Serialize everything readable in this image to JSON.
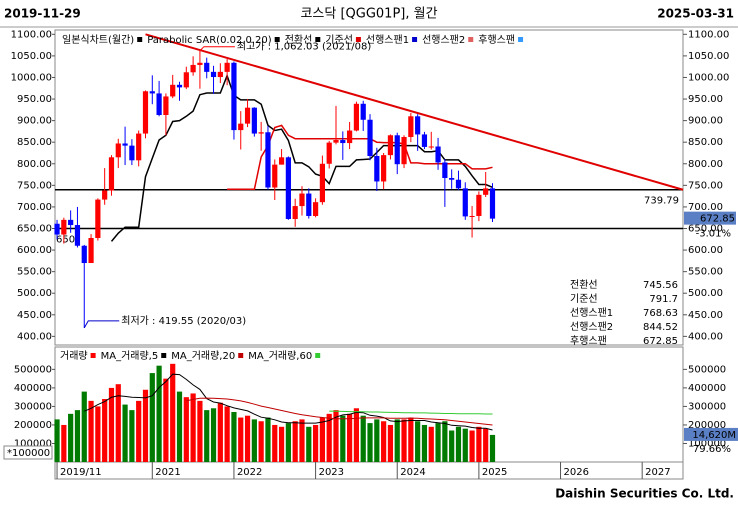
{
  "header": {
    "start_date": "2019-11-29",
    "title": "코스닥 [QGG01P], 월간",
    "end_date": "2025-03-31"
  },
  "footer": "Daishin Securities Co. Ltd.",
  "chart_data": [
    {
      "type": "candlestick",
      "up_color": "#ff0000",
      "down_color": "#0000ff",
      "ylim": [
        380,
        1110
      ],
      "xlim": [
        -0.3,
        92
      ],
      "yticks": [
        {
          "value": 1100,
          "label": "1100.00"
        },
        {
          "value": 1050,
          "label": "1050.00"
        },
        {
          "value": 1000,
          "label": "1000.00"
        },
        {
          "value": 950,
          "label": "950.00"
        },
        {
          "value": 900,
          "label": "900.00"
        },
        {
          "value": 850,
          "label": "850.00"
        },
        {
          "value": 800,
          "label": "800.00"
        },
        {
          "value": 750,
          "label": "750.00"
        },
        {
          "value": 700,
          "label": "700.00"
        },
        {
          "value": 650,
          "label": "650.00"
        },
        {
          "value": 600,
          "label": "600.00"
        },
        {
          "value": 550,
          "label": "550.00"
        },
        {
          "value": 500,
          "label": "500.00"
        },
        {
          "value": 450,
          "label": "450.00"
        },
        {
          "value": 400,
          "label": "400.00"
        }
      ],
      "open": [
        661,
        636,
        670,
        658,
        610,
        570,
        628,
        717,
        738,
        815,
        847,
        842,
        808,
        870,
        968,
        963,
        913,
        956,
        983,
        977,
        1012,
        1029,
        1034,
        1013,
        1001,
        1013,
        1034,
        878,
        893,
        930,
        870,
        873,
        745,
        798,
        815,
        672,
        702,
        731,
        679,
        711,
        800,
        849,
        855,
        848,
        877,
        939,
        902,
        818,
        759,
        820,
        866,
        799,
        862,
        910,
        868,
        839,
        840,
        803,
        767,
        763,
        743,
        678,
        679,
        728,
        743
      ],
      "high": [
        670,
        675,
        692,
        700,
        612,
        637,
        720,
        790,
        820,
        858,
        886,
        857,
        877,
        970,
        1005,
        992,
        963,
        1006,
        990,
        1025,
        1049,
        1062.03,
        1046,
        1027,
        1033,
        1043,
        1037,
        922,
        950,
        931,
        897,
        888,
        810,
        834,
        817,
        719,
        748,
        743,
        720,
        819,
        853,
        934,
        875,
        897,
        944,
        946,
        915,
        837,
        825,
        868,
        872,
        866,
        918,
        915,
        874,
        874,
        860,
        811,
        787,
        784,
        757,
        702,
        736,
        781,
        755
      ],
      "low": [
        625,
        615,
        640,
        606,
        419.55,
        570,
        622,
        705,
        726,
        790,
        797,
        797,
        794,
        859,
        938,
        910,
        866,
        952,
        946,
        973,
        1004,
        974,
        998,
        962,
        987,
        982,
        856,
        833,
        885,
        863,
        830,
        740,
        716,
        798,
        670,
        654,
        680,
        673,
        676,
        705,
        789,
        845,
        809,
        834,
        875,
        876,
        808,
        737,
        741,
        810,
        776,
        790,
        850,
        830,
        834,
        833,
        786,
        700,
        742,
        739,
        670,
        629,
        667,
        723,
        665
      ],
      "close": [
        636,
        670,
        658,
        610,
        570,
        628,
        717,
        738,
        815,
        847,
        842,
        808,
        870,
        968,
        963,
        913,
        956,
        983,
        977,
        1012,
        1029,
        1034,
        1013,
        1001,
        1013,
        1034,
        878,
        893,
        930,
        870,
        873,
        745,
        798,
        815,
        672,
        702,
        731,
        679,
        711,
        800,
        849,
        855,
        848,
        877,
        939,
        902,
        818,
        759,
        820,
        866,
        799,
        862,
        910,
        868,
        839,
        840,
        803,
        767,
        763,
        743,
        678,
        679,
        728,
        743,
        672.85
      ],
      "indicators": [
        {
          "name": "일본식차트(월간)",
          "color": "#000000"
        },
        {
          "name": "Parabolic SAR(0.02,0.20)",
          "color": "#000000"
        },
        {
          "name": "전환선",
          "color": "#000000",
          "values": [
            null,
            null,
            null,
            null,
            null,
            null,
            null,
            null,
            620,
            639,
            653,
            653,
            653,
            770,
            813,
            855,
            866,
            898,
            900,
            910,
            922,
            960,
            964,
            964,
            964,
            1004,
            959,
            948,
            948,
            948,
            938,
            889,
            877,
            880,
            854,
            802,
            802,
            793,
            776,
            771,
            754,
            794,
            794,
            794,
            809,
            810,
            811,
            826,
            842,
            842,
            842,
            842,
            842,
            842,
            828,
            828,
            830,
            809,
            809,
            809,
            794,
            772,
            752,
            752,
            745.56
          ]
        },
        {
          "name": "기준선",
          "color": "#e00000",
          "values": [
            null,
            null,
            null,
            null,
            null,
            null,
            null,
            null,
            null,
            null,
            null,
            null,
            null,
            null,
            null,
            null,
            null,
            null,
            null,
            null,
            null,
            null,
            null,
            null,
            null,
            741,
            741,
            741,
            741,
            741,
            816,
            842,
            884,
            889,
            866,
            858,
            858,
            858,
            858,
            858,
            858,
            858,
            858,
            858,
            858,
            858,
            858,
            850,
            849,
            849,
            849,
            846,
            802,
            802,
            800,
            800,
            800,
            800,
            800,
            800,
            800,
            788,
            788,
            788,
            791.7
          ]
        },
        {
          "name": "선행스팬1",
          "color": "#0000cc"
        },
        {
          "name": "선행스팬2",
          "color": "#e06060"
        },
        {
          "name": "후행스팬",
          "color": "#3399ff"
        }
      ],
      "trendline": {
        "start_index": 13,
        "start_value": 1100,
        "end_value": 739.79,
        "color": "#e00000"
      },
      "hlines": [
        {
          "value": 739.79,
          "label": "739.79",
          "side": "right"
        },
        {
          "value": 650,
          "label": "650",
          "side": "left"
        }
      ],
      "annotations": [
        {
          "index": 21,
          "value": 1062.03,
          "label": "최고가 : 1,062.03 (2021/08)"
        },
        {
          "index": 4,
          "value": 419.55,
          "label": "최저가 : 419.55 (2020/03)"
        }
      ],
      "last_price": {
        "value": 672.85,
        "label": "672.85",
        "change": "-3.01%"
      },
      "info": [
        {
          "label": "전환선",
          "value": 745.56
        },
        {
          "label": "기준선",
          "value": 791.7
        },
        {
          "label": "선행스팬1",
          "value": 768.63
        },
        {
          "label": "선행스팬2",
          "value": 844.52
        },
        {
          "label": "후행스팬",
          "value": 672.85
        }
      ]
    },
    {
      "type": "bar",
      "ylim": [
        0,
        610000
      ],
      "xlim": [
        -0.3,
        92
      ],
      "yticks": [
        100000,
        200000,
        300000,
        400000,
        500000
      ],
      "xticks": [
        {
          "value": 0,
          "label": "2019/11"
        },
        {
          "value": 14,
          "label": "2021"
        },
        {
          "value": 26,
          "label": "2022"
        },
        {
          "value": 38,
          "label": "2023"
        },
        {
          "value": 50,
          "label": "2024"
        },
        {
          "value": 62,
          "label": "2025"
        },
        {
          "value": 74,
          "label": "2026"
        },
        {
          "value": 86,
          "label": "2027"
        }
      ],
      "multiplier": "*100000",
      "up_color": "#ff0000",
      "down_color": "#007a00",
      "series": [
        {
          "name": "거래량",
          "color": "#ff0000",
          "values": [
            230000,
            200000,
            260000,
            280000,
            380000,
            330000,
            300000,
            340000,
            400000,
            420000,
            310000,
            280000,
            330000,
            390000,
            480000,
            520000,
            450000,
            530000,
            380000,
            350000,
            370000,
            330000,
            280000,
            290000,
            320000,
            300000,
            270000,
            240000,
            250000,
            230000,
            220000,
            240000,
            200000,
            190000,
            210000,
            220000,
            230000,
            190000,
            200000,
            240000,
            260000,
            280000,
            250000,
            260000,
            290000,
            250000,
            210000,
            230000,
            220000,
            200000,
            230000,
            230000,
            240000,
            220000,
            200000,
            190000,
            210000,
            220000,
            170000,
            190000,
            180000,
            170000,
            190000,
            180000,
            146200
          ]
        },
        {
          "name": "MA_거래량,5",
          "color": "#000000",
          "values": [
            null,
            null,
            null,
            null,
            274000,
            290000,
            310000,
            326000,
            350000,
            358000,
            354000,
            350000,
            348000,
            346000,
            358000,
            402000,
            434000,
            474000,
            472000,
            446000,
            416000,
            392000,
            342000,
            324000,
            318000,
            304000,
            292000,
            284000,
            276000,
            258000,
            242000,
            236000,
            228000,
            216000,
            212000,
            212000,
            210000,
            210000,
            210000,
            216000,
            224000,
            242000,
            254000,
            258000,
            268000,
            266000,
            252000,
            248000,
            240000,
            222000,
            218000,
            222000,
            224000,
            224000,
            224000,
            216000,
            212000,
            208000,
            198000,
            196000,
            194000,
            186000,
            182000,
            182000,
            173000
          ]
        },
        {
          "name": "MA_거래량,20",
          "color": "#c00000",
          "values": [
            null,
            null,
            null,
            null,
            null,
            null,
            null,
            null,
            null,
            null,
            null,
            null,
            null,
            null,
            null,
            null,
            null,
            null,
            null,
            330000,
            338000,
            344000,
            345000,
            344000,
            342000,
            340000,
            335000,
            330000,
            322000,
            312000,
            302000,
            294000,
            286000,
            278000,
            270000,
            262000,
            255000,
            250000,
            244000,
            240000,
            236000,
            234000,
            234000,
            234000,
            236000,
            238000,
            238000,
            238000,
            238000,
            236000,
            236000,
            236000,
            237000,
            236000,
            234000,
            232000,
            230000,
            228000,
            224000,
            220000,
            216000,
            212000,
            208000,
            204000,
            200000
          ]
        },
        {
          "name": "MA_거래량,60",
          "color": "#33cc33",
          "values": [
            null,
            null,
            null,
            null,
            null,
            null,
            null,
            null,
            null,
            null,
            null,
            null,
            null,
            null,
            null,
            null,
            null,
            null,
            null,
            null,
            null,
            null,
            null,
            null,
            null,
            null,
            null,
            null,
            null,
            null,
            null,
            null,
            null,
            null,
            null,
            null,
            null,
            null,
            null,
            null,
            275000,
            274000,
            273000,
            272000,
            272000,
            271000,
            270000,
            270000,
            269000,
            268000,
            267000,
            266000,
            266000,
            265000,
            265000,
            264000,
            263000,
            262000,
            262000,
            261000,
            261000,
            260000,
            260000,
            259000,
            259000
          ]
        }
      ],
      "last_volume": {
        "label": "14,620M",
        "change": "79.66%"
      }
    }
  ]
}
